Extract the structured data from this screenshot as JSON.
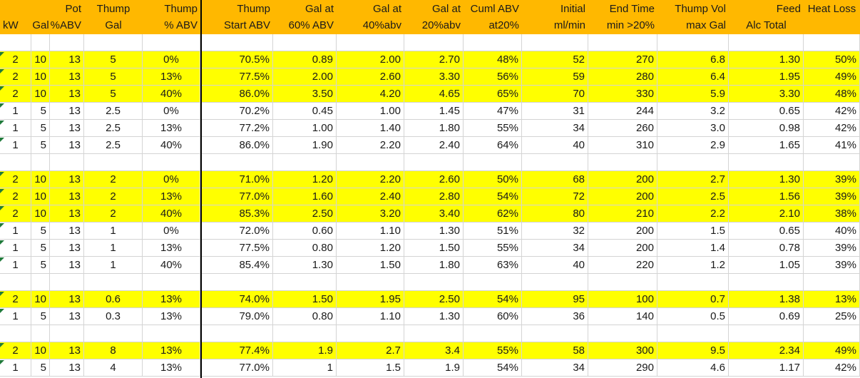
{
  "header": {
    "line1": [
      "",
      "",
      "Pot",
      "Thump",
      "Thump",
      "Thump",
      "Gal at",
      "Gal at",
      "Gal at",
      "Cuml ABV",
      "Initial",
      "End Time",
      "Thump Vol",
      "Feed",
      "Heat Loss"
    ],
    "line2": [
      "kW",
      "Gal",
      "%ABV",
      "Gal",
      "% ABV",
      "Start ABV",
      "60% ABV",
      "40%abv",
      "20%abv",
      "at20%",
      "ml/min",
      "min >20%",
      "max Gal",
      "Alc  Total",
      ""
    ]
  },
  "rows": [
    {
      "type": "blank",
      "cells": [
        "",
        "",
        "",
        "",
        "",
        "",
        "",
        "",
        "",
        "",
        "",
        "",
        "",
        "",
        ""
      ]
    },
    {
      "type": "hl",
      "cells": [
        "2",
        "10",
        "13",
        "5",
        "0%",
        "70.5%",
        "0.89",
        "2.00",
        "2.70",
        "48%",
        "52",
        "270",
        "6.8",
        "1.30",
        "50%"
      ]
    },
    {
      "type": "hl",
      "cells": [
        "2",
        "10",
        "13",
        "5",
        "13%",
        "77.5%",
        "2.00",
        "2.60",
        "3.30",
        "56%",
        "59",
        "280",
        "6.4",
        "1.95",
        "49%"
      ]
    },
    {
      "type": "hl",
      "cells": [
        "2",
        "10",
        "13",
        "5",
        "40%",
        "86.0%",
        "3.50",
        "4.20",
        "4.65",
        "65%",
        "70",
        "330",
        "5.9",
        "3.30",
        "48%"
      ]
    },
    {
      "type": "plain",
      "cells": [
        "1",
        "5",
        "13",
        "2.5",
        "0%",
        "70.2%",
        "0.45",
        "1.00",
        "1.45",
        "47%",
        "31",
        "244",
        "3.2",
        "0.65",
        "42%"
      ]
    },
    {
      "type": "plain",
      "cells": [
        "1",
        "5",
        "13",
        "2.5",
        "13%",
        "77.2%",
        "1.00",
        "1.40",
        "1.80",
        "55%",
        "34",
        "260",
        "3.0",
        "0.98",
        "42%"
      ]
    },
    {
      "type": "plain",
      "cells": [
        "1",
        "5",
        "13",
        "2.5",
        "40%",
        "86.0%",
        "1.90",
        "2.20",
        "2.40",
        "64%",
        "40",
        "310",
        "2.9",
        "1.65",
        "41%"
      ]
    },
    {
      "type": "blank",
      "cells": [
        "",
        "",
        "",
        "",
        "",
        "",
        "",
        "",
        "",
        "",
        "",
        "",
        "",
        "",
        ""
      ]
    },
    {
      "type": "hl",
      "cells": [
        "2",
        "10",
        "13",
        "2",
        "0%",
        "71.0%",
        "1.20",
        "2.20",
        "2.60",
        "50%",
        "68",
        "200",
        "2.7",
        "1.30",
        "39%"
      ]
    },
    {
      "type": "hl",
      "cells": [
        "2",
        "10",
        "13",
        "2",
        "13%",
        "77.0%",
        "1.60",
        "2.40",
        "2.80",
        "54%",
        "72",
        "200",
        "2.5",
        "1.56",
        "39%"
      ]
    },
    {
      "type": "hl",
      "cells": [
        "2",
        "10",
        "13",
        "2",
        "40%",
        "85.3%",
        "2.50",
        "3.20",
        "3.40",
        "62%",
        "80",
        "210",
        "2.2",
        "2.10",
        "38%"
      ]
    },
    {
      "type": "plain",
      "cells": [
        "1",
        "5",
        "13",
        "1",
        "0%",
        "72.0%",
        "0.60",
        "1.10",
        "1.30",
        "51%",
        "32",
        "200",
        "1.5",
        "0.65",
        "40%"
      ]
    },
    {
      "type": "plain",
      "cells": [
        "1",
        "5",
        "13",
        "1",
        "13%",
        "77.5%",
        "0.80",
        "1.20",
        "1.50",
        "55%",
        "34",
        "200",
        "1.4",
        "0.78",
        "39%"
      ]
    },
    {
      "type": "plain",
      "cells": [
        "1",
        "5",
        "13",
        "1",
        "40%",
        "85.4%",
        "1.30",
        "1.50",
        "1.80",
        "63%",
        "40",
        "220",
        "1.2",
        "1.05",
        "39%"
      ]
    },
    {
      "type": "blank",
      "cells": [
        "",
        "",
        "",
        "",
        "",
        "",
        "",
        "",
        "",
        "",
        "",
        "",
        "",
        "",
        ""
      ]
    },
    {
      "type": "hl",
      "cells": [
        "2",
        "10",
        "13",
        "0.6",
        "13%",
        "74.0%",
        "1.50",
        "1.95",
        "2.50",
        "54%",
        "95",
        "100",
        "0.7",
        "1.38",
        "13%"
      ]
    },
    {
      "type": "plain",
      "cells": [
        "1",
        "5",
        "13",
        "0.3",
        "13%",
        "79.0%",
        "0.80",
        "1.10",
        "1.30",
        "60%",
        "36",
        "140",
        "0.5",
        "0.69",
        "25%"
      ]
    },
    {
      "type": "blank",
      "cells": [
        "",
        "",
        "",
        "",
        "",
        "",
        "",
        "",
        "",
        "",
        "",
        "",
        "",
        "",
        ""
      ]
    },
    {
      "type": "hl",
      "cells": [
        "2",
        "10",
        "13",
        "8",
        "13%",
        "77.4%",
        "1.9",
        "2.7",
        "3.4",
        "55%",
        "58",
        "300",
        "9.5",
        "2.34",
        "49%"
      ]
    },
    {
      "type": "plain",
      "cells": [
        "1",
        "5",
        "13",
        "4",
        "13%",
        "77.0%",
        "1",
        "1.5",
        "1.9",
        "54%",
        "34",
        "290",
        "4.6",
        "1.17",
        "42%"
      ]
    }
  ],
  "colors": {
    "header": "#FFB800",
    "highlight": "#FFFF00",
    "grid": "#d4d4d4",
    "marker": "#1f7a3a"
  }
}
